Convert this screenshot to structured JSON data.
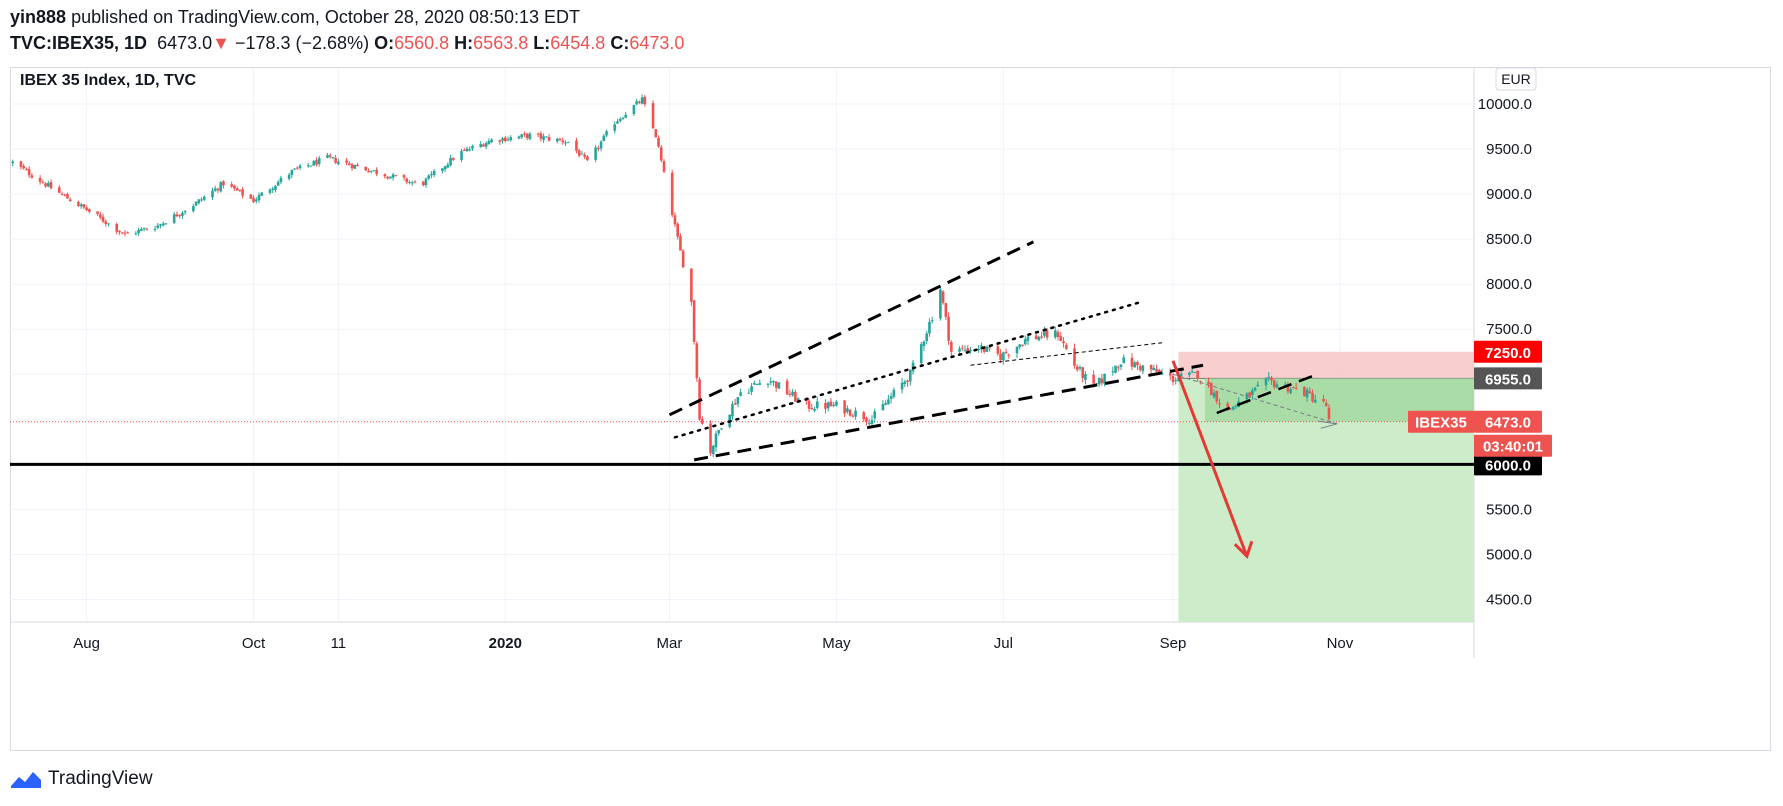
{
  "header": {
    "author": "yin888",
    "published_text": "published on TradingView.com, October 28, 2020 08:50:13 EDT",
    "symbol": "TVC:IBEX35, 1D",
    "last": "6473.0",
    "change": "−178.3 (−2.68%)",
    "o_label": "O:",
    "o": "6560.8",
    "h_label": "H:",
    "h": "6563.8",
    "l_label": "L:",
    "l": "6454.8",
    "c_label": "C:",
    "c": "6473.0",
    "down_arrow": "▼"
  },
  "footer": {
    "brand": "TradingView",
    "logo_icon": "tradingview-logo-icon"
  },
  "colors": {
    "up": "#26a69a",
    "down": "#ef5350",
    "text": "#131722",
    "grid": "#f0f3fa"
  },
  "chart_data": {
    "type": "candlestick",
    "title": "IBEX 35 Index, 1D, TVC",
    "currency": "EUR",
    "y_axis": {
      "min": 4250,
      "max": 10400,
      "ticks": [
        4500,
        5000,
        5500,
        6000,
        6500,
        7000,
        7500,
        8000,
        8500,
        9000,
        9500,
        10000
      ],
      "tick_labels": [
        "4500.0",
        "5000.0",
        "5500.0",
        "6000.0",
        "",
        "",
        "7500.0",
        "8000.0",
        "8500.0",
        "9000.0",
        "9500.0",
        "10000.0"
      ]
    },
    "x_axis": {
      "labels": [
        {
          "text": "Aug",
          "date": "2019-08-01"
        },
        {
          "text": "Oct",
          "date": "2019-10-01"
        },
        {
          "text": "11",
          "date": "2019-11-01"
        },
        {
          "text": "2020",
          "date": "2020-01-01",
          "bold": true
        },
        {
          "text": "Mar",
          "date": "2020-03-01"
        },
        {
          "text": "May",
          "date": "2020-05-01"
        },
        {
          "text": "Jul",
          "date": "2020-07-01"
        },
        {
          "text": "Sep",
          "date": "2020-09-01"
        },
        {
          "text": "Nov",
          "date": "2020-11-01"
        }
      ]
    },
    "price_path": [
      [
        "2019-07-05",
        9350
      ],
      [
        "2019-07-20",
        9050
      ],
      [
        "2019-08-05",
        8750
      ],
      [
        "2019-08-15",
        8550
      ],
      [
        "2019-08-27",
        8650
      ],
      [
        "2019-09-10",
        8900
      ],
      [
        "2019-09-20",
        9120
      ],
      [
        "2019-10-01",
        8930
      ],
      [
        "2019-10-15",
        9250
      ],
      [
        "2019-10-28",
        9400
      ],
      [
        "2019-11-05",
        9330
      ],
      [
        "2019-11-20",
        9200
      ],
      [
        "2019-12-01",
        9100
      ],
      [
        "2019-12-15",
        9450
      ],
      [
        "2019-12-27",
        9600
      ],
      [
        "2020-01-10",
        9650
      ],
      [
        "2020-01-24",
        9580
      ],
      [
        "2020-01-31",
        9350
      ],
      [
        "2020-02-10",
        9800
      ],
      [
        "2020-02-20",
        10050
      ],
      [
        "2020-02-25",
        9650
      ],
      [
        "2020-03-04",
        8500
      ],
      [
        "2020-03-09",
        7800
      ],
      [
        "2020-03-12",
        6550
      ],
      [
        "2020-03-16",
        6150
      ],
      [
        "2020-03-20",
        6450
      ],
      [
        "2020-03-27",
        6800
      ],
      [
        "2020-04-06",
        6950
      ],
      [
        "2020-04-20",
        6650
      ],
      [
        "2020-05-01",
        6650
      ],
      [
        "2020-05-14",
        6500
      ],
      [
        "2020-05-28",
        7000
      ],
      [
        "2020-06-05",
        7650
      ],
      [
        "2020-06-08",
        7950
      ],
      [
        "2020-06-12",
        7250
      ],
      [
        "2020-06-22",
        7300
      ],
      [
        "2020-06-30",
        7200
      ],
      [
        "2020-07-10",
        7400
      ],
      [
        "2020-07-21",
        7450
      ],
      [
        "2020-07-27",
        7100
      ],
      [
        "2020-08-03",
        6850
      ],
      [
        "2020-08-13",
        7150
      ],
      [
        "2020-08-24",
        7050
      ],
      [
        "2020-09-01",
        6950
      ],
      [
        "2020-09-10",
        7000
      ],
      [
        "2020-09-21",
        6600
      ],
      [
        "2020-09-28",
        6750
      ],
      [
        "2020-10-06",
        6920
      ],
      [
        "2020-10-19",
        6800
      ],
      [
        "2020-10-27",
        6651
      ],
      [
        "2020-10-28",
        6473
      ]
    ],
    "annotations": {
      "last_price": {
        "label": "IBEX35",
        "value": "6473.0",
        "countdown": "03:40:01"
      },
      "stop_loss": {
        "value": "7250.0"
      },
      "entry": {
        "value": "6955.0"
      },
      "support": {
        "value": "6000.0"
      },
      "position": {
        "type": "short",
        "start": "2020-09-03",
        "entry": 6955,
        "stop": 7250,
        "target": 4250
      }
    }
  }
}
